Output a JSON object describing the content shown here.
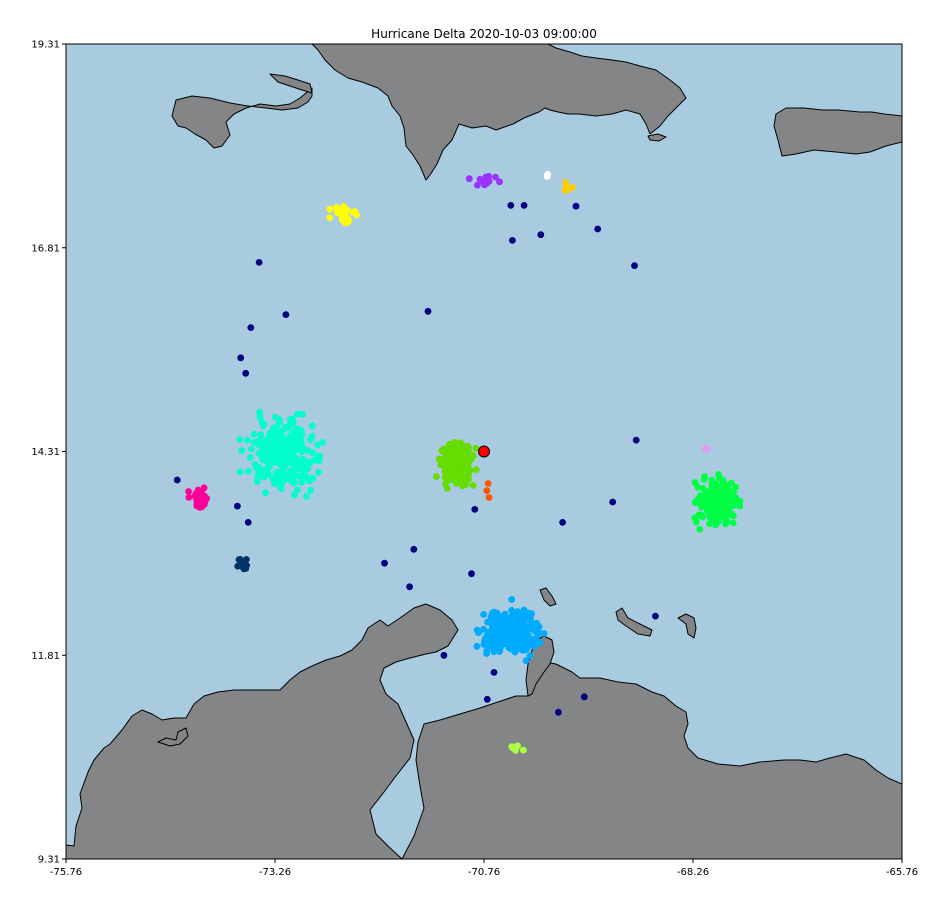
{
  "title": "Hurricane Delta 2020-10-03 09:00:00",
  "colors": {
    "ocean": "#a8cbe0",
    "land": "#838587",
    "storm_center": "#ff0000"
  },
  "chart_data": {
    "type": "scatter",
    "title": "Hurricane Delta 2020-10-03 09:00:00",
    "xlabel": "",
    "ylabel": "",
    "xlim": [
      -75.76,
      -65.76
    ],
    "ylim": [
      9.31,
      19.31
    ],
    "x_ticks": [
      "-75.76",
      "-73.26",
      "-70.76",
      "-68.26",
      "-65.76"
    ],
    "y_ticks": [
      "19.31",
      "16.81",
      "14.31",
      "11.81",
      "9.31"
    ],
    "grid": false,
    "legend": "none",
    "storm_center": {
      "lon": -70.76,
      "lat": 14.31,
      "color": "#ff0000"
    },
    "clusters": [
      {
        "color": "#00ffcc",
        "center": [
          -73.15,
          14.27
        ],
        "spread": [
          0.45,
          0.45
        ],
        "count": 260
      },
      {
        "color": "#66dd00",
        "center": [
          -71.1,
          14.15
        ],
        "spread": [
          0.22,
          0.28
        ],
        "count": 170
      },
      {
        "color": "#00aaff",
        "center": [
          -70.45,
          12.1
        ],
        "spread": [
          0.35,
          0.3
        ],
        "count": 300
      },
      {
        "color": "#00ff44",
        "center": [
          -67.96,
          13.7
        ],
        "spread": [
          0.28,
          0.3
        ],
        "count": 160
      },
      {
        "color": "#ff0099",
        "center": [
          -74.16,
          13.72
        ],
        "spread": [
          0.12,
          0.13
        ],
        "count": 45
      },
      {
        "color": "#003366",
        "center": [
          -73.66,
          12.93
        ],
        "spread": [
          0.07,
          0.1
        ],
        "count": 14
      },
      {
        "color": "#ffff00",
        "center": [
          -72.46,
          17.21
        ],
        "spread": [
          0.18,
          0.12
        ],
        "count": 22
      },
      {
        "color": "#9933ff",
        "center": [
          -70.71,
          17.64
        ],
        "spread": [
          0.2,
          0.08
        ],
        "count": 14
      },
      {
        "color": "#ffcc00",
        "center": [
          -69.78,
          17.56
        ],
        "spread": [
          0.06,
          0.06
        ],
        "count": 6
      },
      {
        "color": "#ffffff",
        "center": [
          -70.0,
          17.69
        ],
        "spread": [
          0.04,
          0.03
        ],
        "count": 3
      },
      {
        "color": "#ff5500",
        "center": [
          -70.7,
          13.85
        ],
        "spread": [
          0.05,
          0.14
        ],
        "count": 3
      },
      {
        "color": "#dda0ee",
        "center": [
          -68.13,
          14.34
        ],
        "spread": [
          0.07,
          0.02
        ],
        "count": 4
      },
      {
        "color": "#aaff44",
        "center": [
          -70.41,
          10.68
        ],
        "spread": [
          0.12,
          0.08
        ],
        "count": 6
      }
    ],
    "scatter_points": {
      "color": "#000080",
      "lon": [
        -73.45,
        -73.13,
        -73.55,
        -73.67,
        -73.61,
        -71.43,
        -70.44,
        -70.28,
        -70.42,
        -70.08,
        -69.66,
        -69.4,
        -68.96,
        -68.94,
        -74.43,
        -73.71,
        -73.58,
        -71.65,
        -71.6,
        -71.95,
        -70.91,
        -70.87,
        -71.24,
        -70.64,
        -70.72,
        -69.87,
        -69.56,
        -69.82,
        -69.22,
        -68.71
      ],
      "lat": [
        16.63,
        15.99,
        15.83,
        15.46,
        15.27,
        16.03,
        17.33,
        17.33,
        16.9,
        16.97,
        17.32,
        17.04,
        16.59,
        14.45,
        13.96,
        13.64,
        13.44,
        12.65,
        13.11,
        12.94,
        12.81,
        13.6,
        11.81,
        11.6,
        11.27,
        11.11,
        11.3,
        13.44,
        13.69,
        12.29
      ]
    }
  }
}
